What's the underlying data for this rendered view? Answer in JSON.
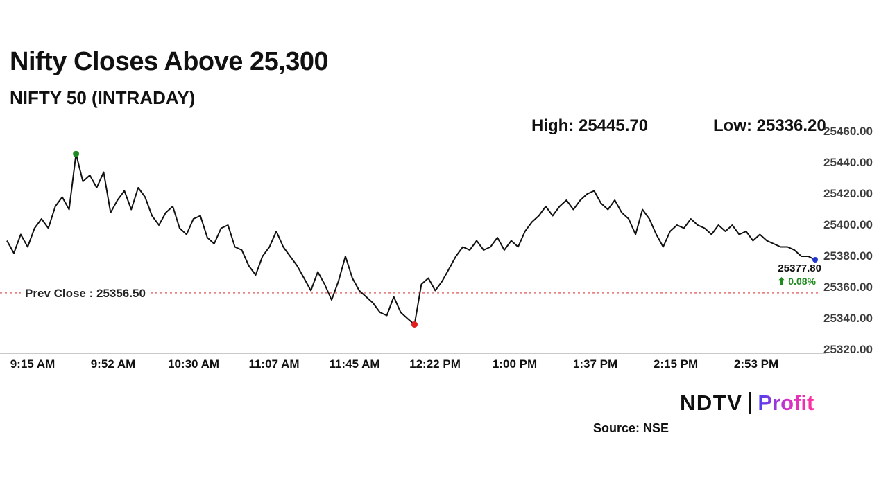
{
  "header": {
    "title": "Nifty Closes Above 25,300",
    "subtitle": "NIFTY 50 (INTRADAY)",
    "high_label": "High: 25445.70",
    "low_label": "Low: 25336.20"
  },
  "chart_data": {
    "type": "line",
    "title": "Nifty Closes Above 25,300",
    "series_name": "NIFTY 50 intraday price",
    "xlabel": "",
    "ylabel": "",
    "grid": false,
    "legend": false,
    "ylim": [
      25320,
      25460
    ],
    "x_labels": [
      "9:15 AM",
      "9:52 AM",
      "10:30 AM",
      "11:07 AM",
      "11:45 AM",
      "12:22 PM",
      "1:00 PM",
      "1:37 PM",
      "2:15 PM",
      "2:53 PM"
    ],
    "y_ticks": [
      {
        "value": 25320,
        "label": "25320.00"
      },
      {
        "value": 25340,
        "label": "25340.00"
      },
      {
        "value": 25360,
        "label": "25360.00"
      },
      {
        "value": 25380,
        "label": "25380.00"
      },
      {
        "value": 25400,
        "label": "25400.00"
      },
      {
        "value": 25420,
        "label": "25420.00"
      },
      {
        "value": 25440,
        "label": "25440.00"
      },
      {
        "value": 25460,
        "label": "25460.00"
      }
    ],
    "high": 25445.7,
    "low": 25336.2,
    "prev_close": 25356.5,
    "prev_close_label": "Prev Close : 25356.50",
    "last": 25377.8,
    "last_label": "25377.80",
    "change_label": "⬆ 0.08%",
    "line_color": "#111111",
    "prev_close_color": "#e87272",
    "high_marker_color": "#1f8a1f",
    "low_marker_color": "#e02020",
    "last_marker_color": "#2038d0",
    "change_color": "#1f8a1f",
    "high_index": 10,
    "low_index": 59,
    "values": [
      25390,
      25382,
      25394,
      25386,
      25398,
      25404,
      25398,
      25412,
      25418,
      25410,
      25445.7,
      25428,
      25432,
      25424,
      25434,
      25408,
      25416,
      25422,
      25410,
      25424,
      25418,
      25406,
      25400,
      25408,
      25412,
      25398,
      25394,
      25404,
      25406,
      25392,
      25388,
      25398,
      25400,
      25386,
      25384,
      25374,
      25368,
      25380,
      25386,
      25396,
      25386,
      25380,
      25374,
      25366,
      25358,
      25370,
      25362,
      25352,
      25364,
      25380,
      25366,
      25358,
      25354,
      25350,
      25344,
      25342,
      25354,
      25344,
      25340,
      25336.2,
      25362,
      25366,
      25358,
      25364,
      25372,
      25380,
      25386,
      25384,
      25390,
      25384,
      25386,
      25392,
      25384,
      25390,
      25386,
      25396,
      25402,
      25406,
      25412,
      25406,
      25412,
      25416,
      25410,
      25416,
      25420,
      25422,
      25414,
      25410,
      25416,
      25408,
      25404,
      25394,
      25410,
      25404,
      25394,
      25386,
      25396,
      25400,
      25398,
      25404,
      25400,
      25398,
      25394,
      25400,
      25396,
      25400,
      25394,
      25396,
      25390,
      25394,
      25390,
      25388,
      25386,
      25386,
      25384,
      25380,
      25380,
      25377.8
    ]
  },
  "footer": {
    "source": "Source: NSE",
    "logo": {
      "ndtv": "NDTV",
      "profit": "Profit",
      "profit_gradient": [
        "#4a3ff0",
        "#d433c8",
        "#ff2f9e"
      ]
    }
  }
}
